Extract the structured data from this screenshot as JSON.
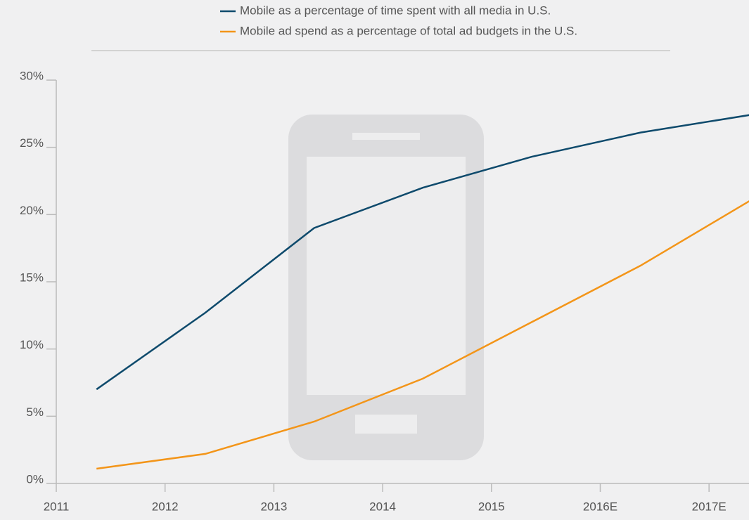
{
  "chart_data": {
    "type": "line",
    "categories": [
      "2011",
      "2012",
      "2013",
      "2014",
      "2015",
      "2016E",
      "2017E"
    ],
    "series": [
      {
        "name": "Mobile as a percentage of time spent with all media in U.S.",
        "color": "#0e4a6c",
        "values": [
          7.0,
          12.7,
          19.0,
          22.0,
          24.3,
          26.1,
          27.4
        ]
      },
      {
        "name": "Mobile ad spend as a percentage of total ad budgets in the U.S.",
        "color": "#f39519",
        "values": [
          1.1,
          2.2,
          4.6,
          7.8,
          12.0,
          16.2,
          21.0
        ]
      }
    ],
    "ylim": [
      0,
      30
    ],
    "yticks": [
      {
        "value": 0,
        "label": "0%"
      },
      {
        "value": 5,
        "label": "5%"
      },
      {
        "value": 10,
        "label": "10%"
      },
      {
        "value": 15,
        "label": "15%"
      },
      {
        "value": 20,
        "label": "20%"
      },
      {
        "value": 25,
        "label": "25%"
      },
      {
        "value": 30,
        "label": "30%"
      }
    ],
    "legend": "top"
  }
}
